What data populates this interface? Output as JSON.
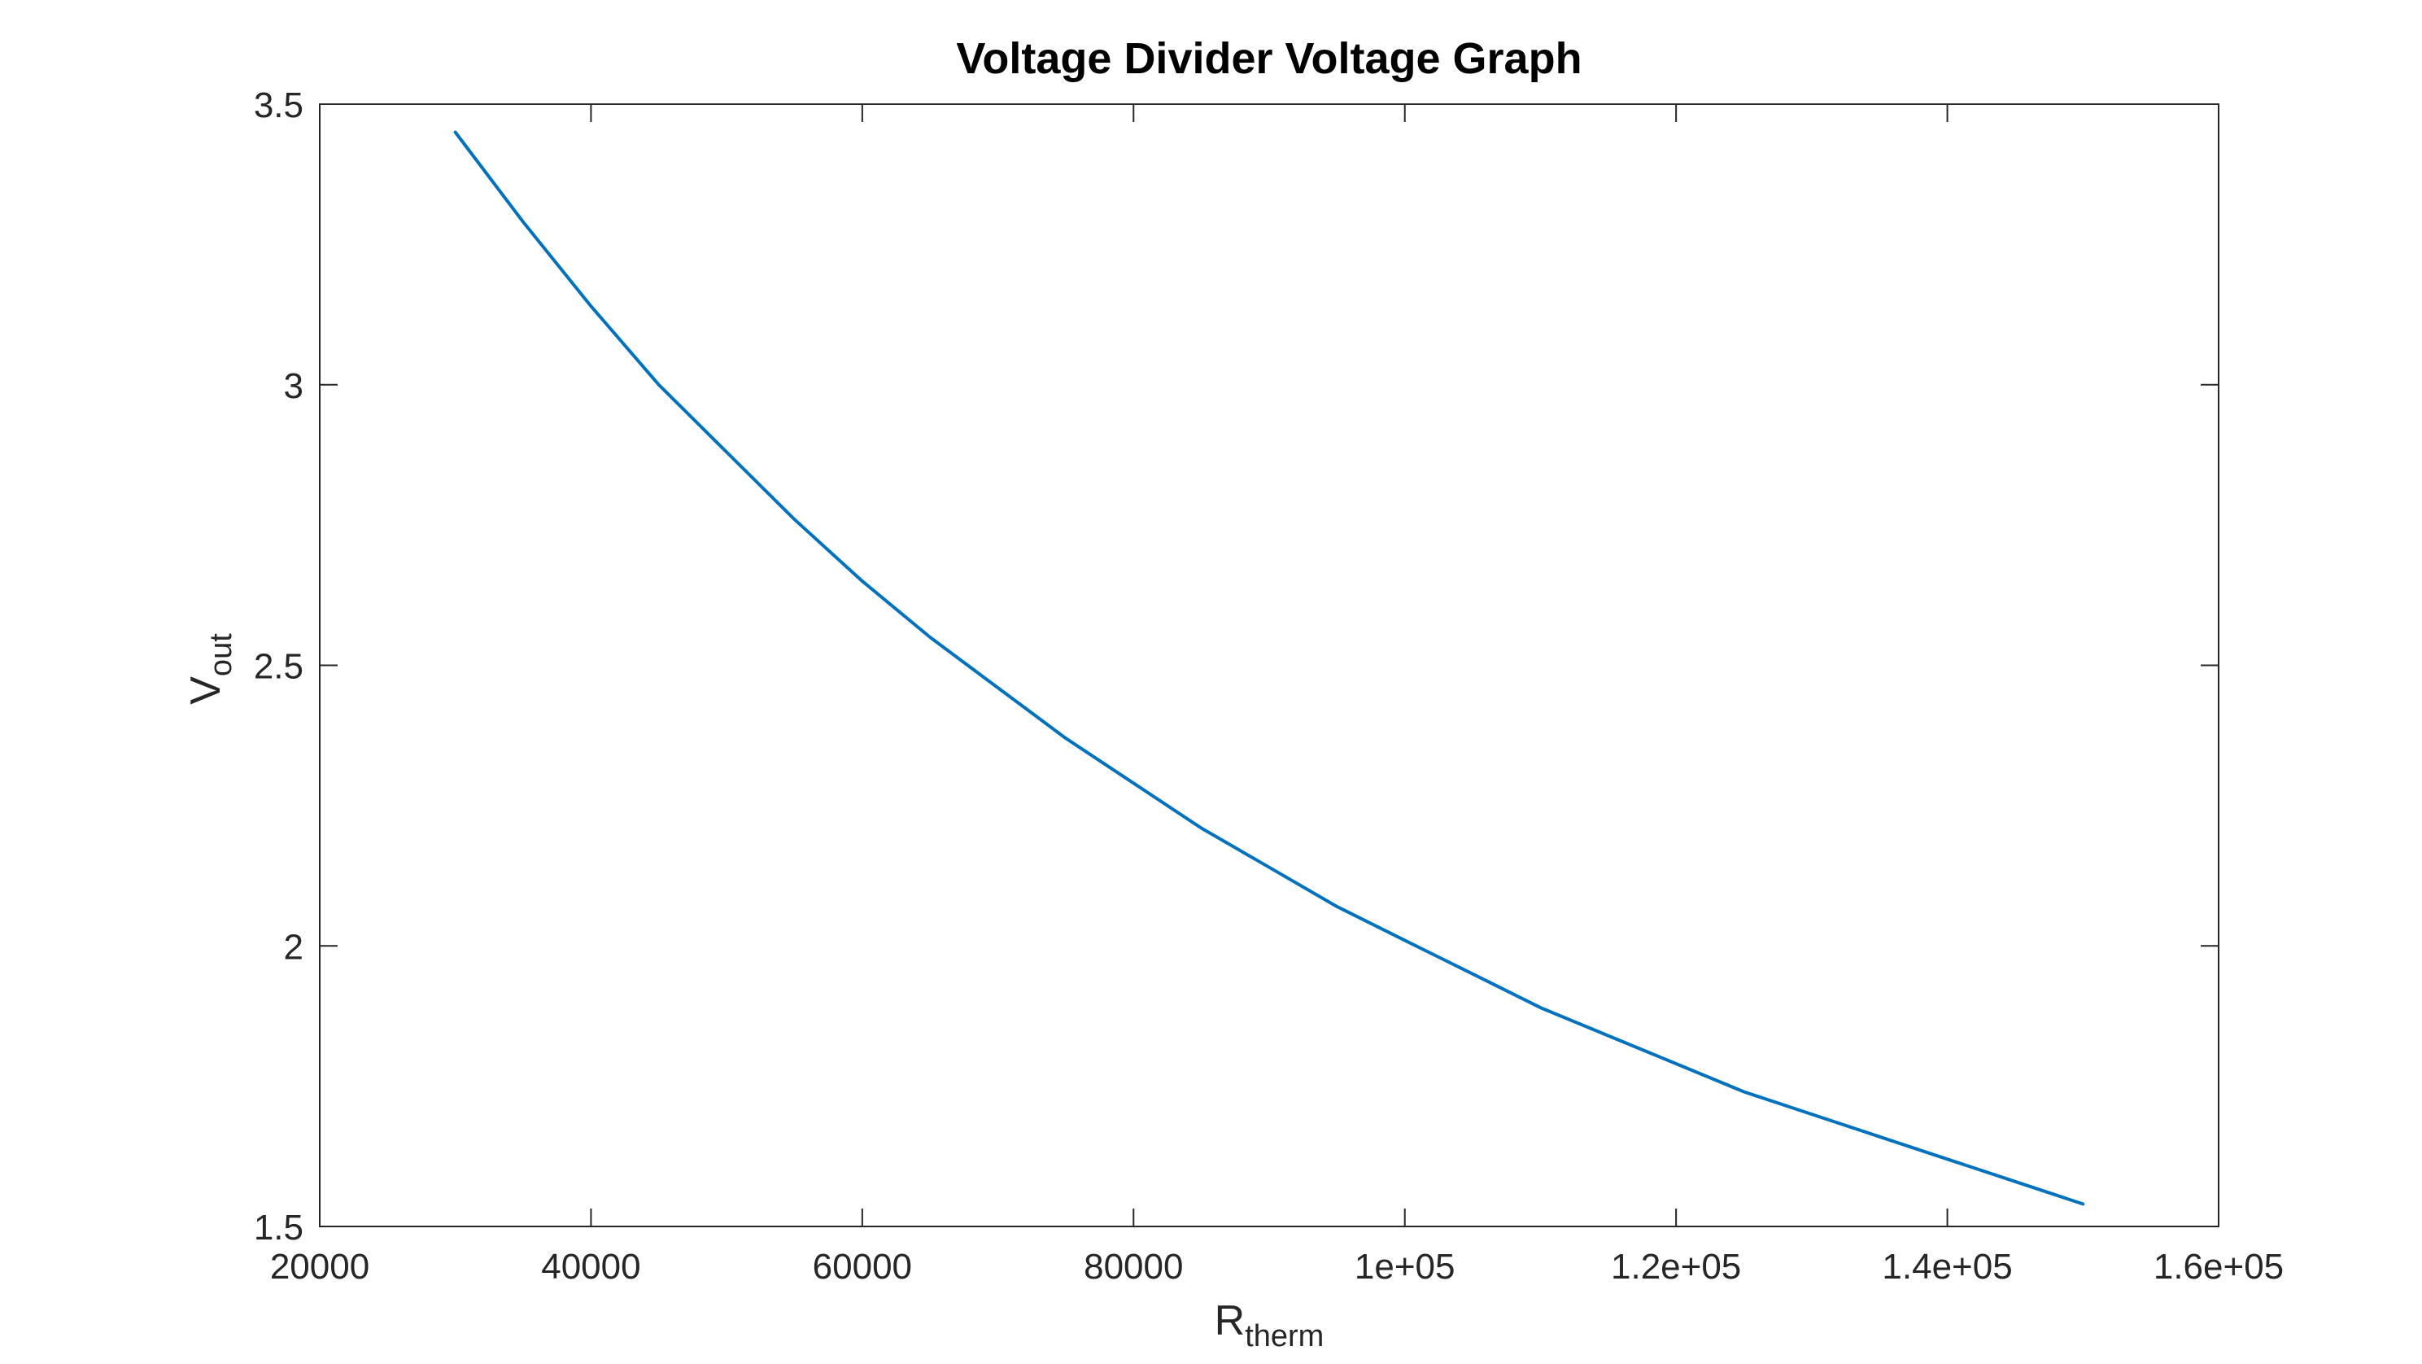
{
  "chart_data": {
    "type": "line",
    "title": "Voltage Divider Voltage Graph",
    "xlabel": {
      "main": "R",
      "sub": "therm"
    },
    "ylabel": {
      "main": "V",
      "sub": "out"
    },
    "xlim": [
      20000,
      160000
    ],
    "ylim": [
      1.5,
      3.5
    ],
    "xticks": [
      {
        "value": 20000,
        "label": "20000"
      },
      {
        "value": 40000,
        "label": "40000"
      },
      {
        "value": 60000,
        "label": "60000"
      },
      {
        "value": 80000,
        "label": "80000"
      },
      {
        "value": 100000,
        "label": "1e+05"
      },
      {
        "value": 120000,
        "label": "1.2e+05"
      },
      {
        "value": 140000,
        "label": "1.4e+05"
      },
      {
        "value": 160000,
        "label": "1.6e+05"
      }
    ],
    "yticks": [
      {
        "value": 1.5,
        "label": "1.5"
      },
      {
        "value": 2,
        "label": "2"
      },
      {
        "value": 2.5,
        "label": "2.5"
      },
      {
        "value": 3,
        "label": "3"
      },
      {
        "value": 3.5,
        "label": "3.5"
      }
    ],
    "grid": false,
    "box": true,
    "colors": {
      "line": "#0072BD",
      "axis": "#262626"
    },
    "series": [
      {
        "x": [
          30000,
          35000,
          40000,
          45000,
          50000,
          55000,
          60000,
          65000,
          70000,
          75000,
          80000,
          85000,
          90000,
          95000,
          100000,
          105000,
          110000,
          115000,
          120000,
          125000,
          130000,
          135000,
          140000,
          145000,
          150000
        ],
        "values": [
          3.45,
          3.29,
          3.14,
          3.0,
          2.88,
          2.76,
          2.65,
          2.55,
          2.46,
          2.37,
          2.29,
          2.21,
          2.14,
          2.07,
          2.01,
          1.95,
          1.89,
          1.84,
          1.79,
          1.74,
          1.7,
          1.66,
          1.62,
          1.58,
          1.54
        ]
      }
    ]
  }
}
